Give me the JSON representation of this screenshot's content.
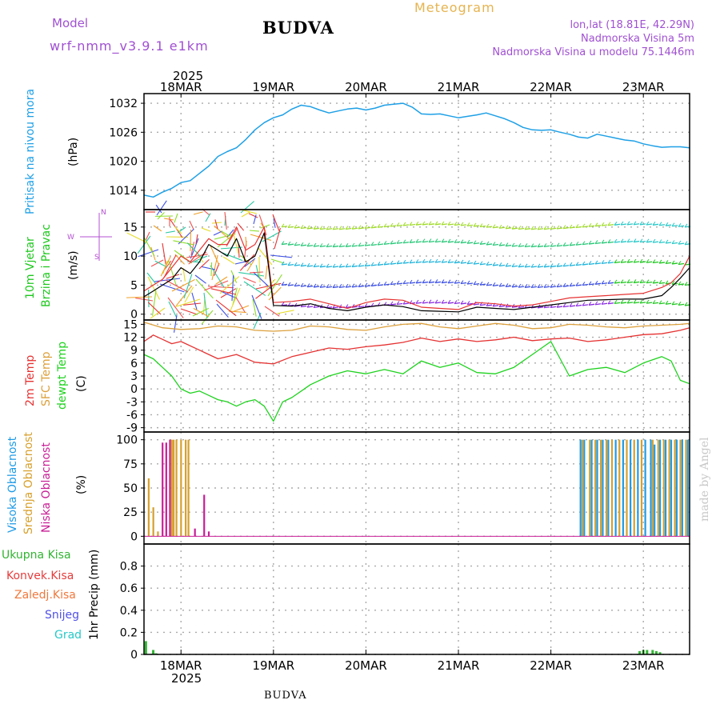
{
  "header": {
    "model_label": "Model",
    "model_name": "wrf-nmm_v3.9.1  e1km",
    "title": "BUDVA",
    "meteogram_label": "Meteogram",
    "lonlat": "lon,lat (18.81E, 42.29N)",
    "altitude": "Nadmorska Visina 5m",
    "model_altitude": "Nadmorska Visina u modelu 75.1446m",
    "top_year": "2025",
    "bottom_year": "2025",
    "footer": "BUDVA",
    "watermark": "made by Angel"
  },
  "colors": {
    "pressure": "#1ea0e6",
    "temp2m": "#e63232",
    "sfc_temp": "#dca03c",
    "dewpoint": "#1ed21e",
    "high_cloud": "#1e9be6",
    "mid_cloud": "#d7a02d",
    "low_cloud": "#c81e96",
    "total_precip": "#32b432",
    "conv_precip": "#e63c3c",
    "frozen_precip": "#f0783c",
    "snow": "#5050e6",
    "graupel": "#28c8c8",
    "wind_label": "#1ec81e",
    "wind_dir_label": "#b450d2",
    "wind_speed": "#000000",
    "gust": "#e63232",
    "grid": "#aaaaaa",
    "model_label": "#a050d2",
    "meteogram": "#e6b450",
    "watermark": "#c8c8c8"
  },
  "panel_labels": {
    "pressure": {
      "line1": "Pritisak na nivou mora",
      "unit": "(hPa)"
    },
    "wind": {
      "line1": "10m Vjetar",
      "line2": "Brzina i Pravac",
      "unit": "(m/s)",
      "compass_n": "N",
      "compass_s": "S",
      "compass_e": "E",
      "compass_w": "W"
    },
    "temp": {
      "line1": "2m Temp",
      "line2": "SFC Temp",
      "line3": "dewpt Temp",
      "unit": "(C)"
    },
    "cloud": {
      "line1": "Visoka Oblacnost",
      "line2": "Srednja Oblacnost",
      "line3": "Niska  Oblacnost",
      "unit": "(%)"
    },
    "precip": {
      "unit": "1hr Precip (mm)"
    }
  },
  "precip_legend": [
    {
      "label": "Ukupna Kisa",
      "color": "#32b432"
    },
    {
      "label": "Konvek.Kisa",
      "color": "#e63c3c"
    },
    {
      "label": "Zaledj.Kisa",
      "color": "#f0783c"
    },
    {
      "label": "Snijeg",
      "color": "#5050e6"
    },
    {
      "label": "Grad",
      "color": "#28c8c8"
    }
  ],
  "chart_data": [
    {
      "type": "line",
      "title": "Pritisak na nivou mora",
      "ylabel": "(hPa)",
      "x_unit": "day of March 2025",
      "x_ticks": [
        "18MAR",
        "19MAR",
        "20MAR",
        "21MAR",
        "22MAR",
        "23MAR"
      ],
      "xlim": [
        17.6,
        23.5
      ],
      "ylim": [
        1010,
        1034
      ],
      "y_ticks": [
        "1014",
        "1020",
        "1026",
        "1032"
      ],
      "grid": true,
      "series": [
        {
          "x": [
            17.6,
            17.7,
            17.8,
            17.9,
            18.0,
            18.1,
            18.2,
            18.3,
            18.4,
            18.5,
            18.6,
            18.7,
            18.8,
            18.9,
            19.0,
            19.1,
            19.2,
            19.3,
            19.4,
            19.5,
            19.6,
            19.7,
            19.8,
            19.9,
            20.0,
            20.1,
            20.2,
            20.3,
            20.4,
            20.5,
            20.6,
            20.7,
            20.8,
            20.9,
            21.0,
            21.1,
            21.2,
            21.3,
            21.4,
            21.5,
            21.6,
            21.7,
            21.8,
            21.9,
            22.0,
            22.1,
            22.2,
            22.3,
            22.4,
            22.5,
            22.6,
            22.7,
            22.8,
            22.9,
            23.0,
            23.1,
            23.2,
            23.3,
            23.4,
            23.5
          ],
          "y": [
            1013.0,
            1012.6,
            1013.6,
            1014.4,
            1015.6,
            1016.0,
            1017.5,
            1019.0,
            1021.0,
            1022.0,
            1022.8,
            1024.5,
            1026.5,
            1028.0,
            1029.0,
            1029.6,
            1030.8,
            1031.6,
            1031.3,
            1030.6,
            1030.0,
            1030.4,
            1030.8,
            1031.0,
            1030.6,
            1031.0,
            1031.6,
            1031.8,
            1032.0,
            1031.2,
            1029.8,
            1029.7,
            1029.8,
            1029.4,
            1029.0,
            1029.3,
            1029.6,
            1030.0,
            1029.4,
            1028.8,
            1028.0,
            1027.0,
            1026.5,
            1026.4,
            1026.5,
            1026.0,
            1025.6,
            1025.0,
            1024.8,
            1025.6,
            1025.2,
            1024.8,
            1024.4,
            1024.2,
            1023.6,
            1023.2,
            1022.9,
            1023.0,
            1023.0,
            1022.8
          ]
        }
      ]
    },
    {
      "type": "line",
      "title": "10m Vjetar Brzina i Pravac",
      "ylabel": "(m/s)",
      "x_unit": "day of March 2025",
      "xlim": [
        17.6,
        23.5
      ],
      "ylim": [
        -1,
        18
      ],
      "y_ticks": [
        "0",
        "5",
        "10",
        "15"
      ],
      "grid": true,
      "series": [
        {
          "name": "speed",
          "x": [
            17.6,
            17.7,
            17.8,
            17.9,
            18.0,
            18.1,
            18.2,
            18.3,
            18.4,
            18.5,
            18.6,
            18.7,
            18.8,
            18.9,
            19.0,
            19.2,
            19.4,
            19.6,
            19.8,
            20.0,
            20.2,
            20.4,
            20.6,
            20.8,
            21.0,
            21.2,
            21.4,
            21.6,
            21.8,
            22.0,
            22.2,
            22.4,
            22.6,
            22.8,
            23.0,
            23.2,
            23.3,
            23.4,
            23.5
          ],
          "y": [
            3,
            4,
            5,
            6,
            8,
            7,
            9,
            12,
            11,
            10,
            13,
            9,
            10,
            14,
            1.5,
            1.4,
            1.8,
            1.0,
            0.6,
            1.2,
            1.6,
            1.3,
            0.6,
            0.5,
            0.4,
            1.2,
            1.0,
            0.8,
            1.2,
            1.6,
            2.0,
            2.4,
            2.5,
            2.6,
            2.6,
            3.2,
            4.6,
            6.2,
            8.0
          ]
        },
        {
          "name": "gust",
          "x": [
            17.6,
            17.7,
            17.8,
            17.9,
            18.0,
            18.1,
            18.2,
            18.3,
            18.4,
            18.5,
            18.6,
            18.7,
            18.8,
            18.9,
            19.0,
            19.2,
            19.4,
            19.6,
            19.8,
            20.0,
            20.2,
            20.4,
            20.6,
            20.8,
            21.0,
            21.2,
            21.4,
            21.6,
            21.8,
            22.0,
            22.2,
            22.4,
            22.6,
            22.8,
            23.0,
            23.2,
            23.3,
            23.4,
            23.5
          ],
          "y": [
            4,
            5,
            6,
            8,
            10,
            9,
            11,
            13,
            12,
            12,
            15,
            11,
            12,
            15,
            2.0,
            2.2,
            2.6,
            1.8,
            1.0,
            2.0,
            2.6,
            2.4,
            1.2,
            1.0,
            0.8,
            2.0,
            1.8,
            1.4,
            1.6,
            2.2,
            2.8,
            3.0,
            3.2,
            3.4,
            3.6,
            4.6,
            5.4,
            7.0,
            10.0
          ]
        }
      ]
    },
    {
      "type": "line",
      "title": "2m Temp / SFC Temp / dewpt Temp",
      "ylabel": "(C)",
      "x_unit": "day of March 2025",
      "xlim": [
        17.6,
        23.5
      ],
      "ylim": [
        -10,
        16
      ],
      "y_ticks": [
        "-9",
        "-6",
        "-3",
        "0",
        "3",
        "6",
        "9",
        "12",
        "15"
      ],
      "grid": true,
      "series": [
        {
          "name": "2m Temp",
          "x": [
            17.6,
            17.7,
            17.8,
            17.9,
            18.0,
            18.2,
            18.4,
            18.6,
            18.8,
            19.0,
            19.2,
            19.4,
            19.6,
            19.8,
            20.0,
            20.2,
            20.4,
            20.6,
            20.8,
            21.0,
            21.2,
            21.4,
            21.6,
            21.8,
            22.0,
            22.2,
            22.4,
            22.6,
            22.8,
            23.0,
            23.2,
            23.4,
            23.5
          ],
          "y": [
            11,
            12.5,
            11.5,
            10.5,
            11,
            9,
            7,
            8,
            6.2,
            5.8,
            7.5,
            8.5,
            9.5,
            9.2,
            9.8,
            10.2,
            10.8,
            11.8,
            11.0,
            11.6,
            11.0,
            11.4,
            12.0,
            11.2,
            11.6,
            11.8,
            11.0,
            11.4,
            12.0,
            12.6,
            12.8,
            13.6,
            14.2
          ]
        },
        {
          "name": "SFC Temp",
          "x": [
            17.6,
            17.8,
            18.0,
            18.2,
            18.4,
            18.6,
            18.8,
            19.0,
            19.2,
            19.4,
            19.6,
            19.8,
            20.0,
            20.2,
            20.4,
            20.6,
            20.8,
            21.0,
            21.2,
            21.4,
            21.6,
            21.8,
            22.0,
            22.2,
            22.4,
            22.6,
            22.8,
            23.0,
            23.2,
            23.4,
            23.5
          ],
          "y": [
            15.5,
            14.2,
            13.8,
            14.0,
            14.6,
            14.4,
            13.6,
            13.4,
            13.6,
            14.6,
            14.4,
            13.8,
            13.6,
            14.4,
            15.0,
            15.2,
            14.4,
            14.0,
            14.6,
            15.2,
            14.8,
            14.0,
            14.2,
            15.0,
            14.8,
            14.4,
            14.2,
            14.6,
            14.8,
            15.0,
            15.2
          ]
        },
        {
          "name": "dewpt Temp",
          "x": [
            17.6,
            17.7,
            17.8,
            17.9,
            18.0,
            18.1,
            18.2,
            18.3,
            18.4,
            18.5,
            18.6,
            18.7,
            18.8,
            18.9,
            19.0,
            19.1,
            19.2,
            19.4,
            19.6,
            19.8,
            20.0,
            20.2,
            20.4,
            20.6,
            20.8,
            21.0,
            21.2,
            21.4,
            21.6,
            21.8,
            22.0,
            22.1,
            22.2,
            22.4,
            22.6,
            22.8,
            23.0,
            23.2,
            23.3,
            23.4,
            23.5
          ],
          "y": [
            8,
            7,
            5,
            3,
            0,
            -1,
            -0.5,
            -1.5,
            -2.5,
            -3,
            -4,
            -3,
            -2.5,
            -4,
            -7.5,
            -3,
            -2,
            1,
            3,
            4.2,
            3.5,
            4.5,
            3.5,
            6.5,
            5.0,
            6.0,
            3.8,
            3.5,
            5.0,
            8.0,
            11.0,
            7.0,
            3.0,
            4.5,
            5.0,
            3.8,
            6.0,
            7.5,
            6.5,
            2.0,
            1.2
          ]
        }
      ]
    },
    {
      "type": "bar",
      "title": "Visoka / Srednja / Niska Oblacnost",
      "ylabel": "(%)",
      "x_unit": "day of March 2025",
      "xlim": [
        17.6,
        23.5
      ],
      "ylim": [
        0,
        100
      ],
      "y_ticks": [
        "0",
        "25",
        "50",
        "75",
        "100"
      ],
      "grid": true,
      "series": [
        {
          "name": "Visoka Oblacnost",
          "x": [
            22.32,
            22.36,
            22.44,
            22.5,
            22.56,
            22.62,
            22.7,
            22.78,
            22.86,
            22.94,
            23.02,
            23.08,
            23.12,
            23.18,
            23.24,
            23.3,
            23.36,
            23.42,
            23.48
          ],
          "y": [
            100,
            100,
            100,
            100,
            100,
            100,
            100,
            100,
            100,
            100,
            100,
            100,
            95,
            100,
            100,
            100,
            100,
            100,
            100
          ]
        },
        {
          "name": "Srednja Oblacnost",
          "x": [
            17.65,
            17.7,
            17.75,
            17.9,
            17.92,
            17.95,
            18.0,
            18.05,
            18.08,
            22.34,
            22.42,
            22.48,
            22.54,
            22.6,
            22.66,
            22.74,
            22.82,
            22.9,
            22.98,
            23.1,
            23.16,
            23.22,
            23.28,
            23.34,
            23.4,
            23.46
          ],
          "y": [
            60,
            30,
            5,
            100,
            100,
            100,
            100,
            100,
            100,
            100,
            100,
            100,
            100,
            100,
            100,
            100,
            100,
            100,
            100,
            100,
            100,
            100,
            100,
            100,
            100,
            100
          ]
        },
        {
          "name": "Niska Oblacnost",
          "x": [
            17.8,
            17.84,
            17.88,
            18.15,
            18.25,
            18.3
          ],
          "y": [
            97,
            97,
            100,
            8,
            43,
            5
          ]
        }
      ]
    },
    {
      "type": "bar",
      "title": "1hr Precip",
      "ylabel": "1hr Precip (mm)",
      "x_unit": "day of March 2025",
      "xlim": [
        17.6,
        23.5
      ],
      "ylim": [
        0,
        1.0
      ],
      "y_ticks": [
        "0",
        "0.2",
        "0.4",
        "0.6",
        "0.8"
      ],
      "grid": true,
      "series": [
        {
          "name": "Ukupna Kisa",
          "x": [
            17.62,
            17.7,
            17.73,
            22.96,
            23.0,
            23.04,
            23.1,
            23.14,
            23.18
          ],
          "y": [
            0.12,
            0.04,
            0.01,
            0.03,
            0.04,
            0.04,
            0.04,
            0.03,
            0.02
          ]
        }
      ]
    }
  ]
}
